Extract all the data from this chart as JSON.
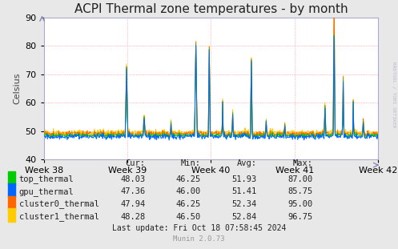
{
  "title": "ACPI Thermal zone temperatures - by month",
  "ylabel": "Celsius",
  "ylim": [
    40,
    90
  ],
  "yticks": [
    40,
    50,
    60,
    70,
    80,
    90
  ],
  "week_labels": [
    "Week 38",
    "Week 39",
    "Week 40",
    "Week 41",
    "Week 42"
  ],
  "background_color": "#e8e8e8",
  "plot_bg_color": "#ffffff",
  "grid_color": "#ff9999",
  "series_order": [
    "top_thermal",
    "gpu_thermal",
    "cluster0_thermal",
    "cluster1_thermal"
  ],
  "series": {
    "top_thermal": {
      "color": "#00cc00",
      "label": "top_thermal",
      "cur": "48.03",
      "min": "46.25",
      "avg": "51.93",
      "max": "87.00"
    },
    "gpu_thermal": {
      "color": "#0066ff",
      "label": "gpu_thermal",
      "cur": "47.36",
      "min": "46.00",
      "avg": "51.41",
      "max": "85.75"
    },
    "cluster0_thermal": {
      "color": "#ff6600",
      "label": "cluster0_thermal",
      "cur": "47.94",
      "min": "46.25",
      "avg": "52.34",
      "max": "95.00"
    },
    "cluster1_thermal": {
      "color": "#ffcc00",
      "label": "cluster1_thermal",
      "cur": "48.28",
      "min": "46.50",
      "avg": "52.84",
      "max": "96.75"
    }
  },
  "last_update": "Last update: Fri Oct 18 07:58:45 2024",
  "munin_version": "Munin 2.0.73",
  "rrdtool_label": "RRDTOOL / TOBI OETIKER",
  "title_fontsize": 11,
  "axis_fontsize": 8,
  "legend_fontsize": 7.5,
  "num_points": 700,
  "fig_width": 4.97,
  "fig_height": 3.11,
  "dpi": 100
}
